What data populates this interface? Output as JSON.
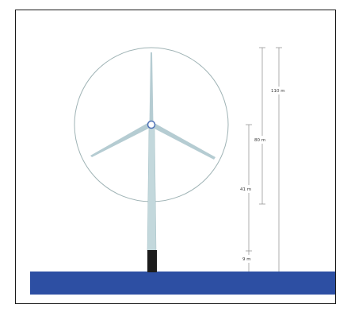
{
  "figure": {
    "dimensions": [
      {
        "id": "hub-height",
        "label": "110 m"
      },
      {
        "id": "blade-length",
        "label": "80 m"
      },
      {
        "id": "clearance",
        "label": "41 m"
      },
      {
        "id": "base",
        "label": "9 m"
      }
    ]
  },
  "colors": {
    "frame": "#1a1a1a",
    "water": "#2d4fa3",
    "tower": "#c3d8dc",
    "tower_base": "#1c1c1c",
    "rotor_circle": "#9fb3b5",
    "blade": "#b5ccd2",
    "hub_ring": "#4f72b6",
    "dimension_line": "#8a8a8a",
    "label_text": "#3a3a3a"
  }
}
